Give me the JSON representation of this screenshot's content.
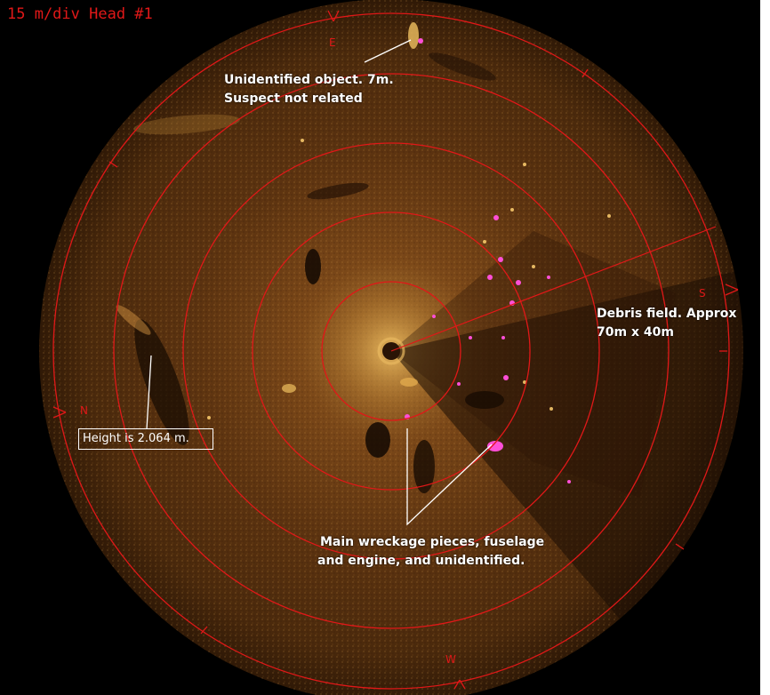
{
  "header": {
    "scale_label": "15 m/div Head #1"
  },
  "compass": {
    "top": "E",
    "right": "S",
    "bottom": "W",
    "left": "N"
  },
  "annotations": {
    "unidentified_line1": "Unidentified object. 7m.",
    "unidentified_line2": "Suspect not related",
    "debris_line1": "Debris field. Approx",
    "debris_line2": "70m x 40m",
    "wreckage_line1": "Main wreckage pieces,   fuselage",
    "wreckage_line2": "and engine, and unidentified.",
    "height_measure": "Height is 2.064 m."
  },
  "colors": {
    "background": "#000000",
    "range_ring": "#e01818",
    "annotation_text": "#ffffff",
    "sonar_floor": "#6b3a14",
    "target_highlight": "#ff4fd8"
  }
}
